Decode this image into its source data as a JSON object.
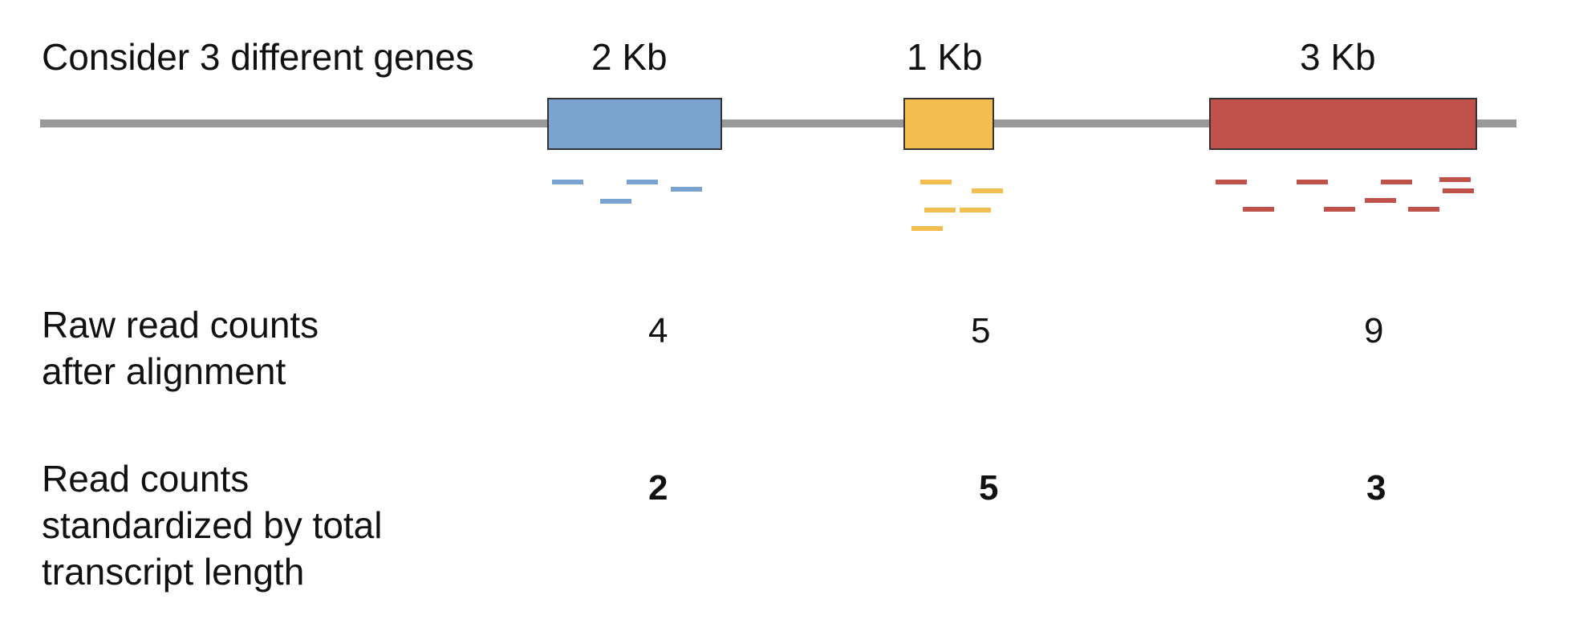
{
  "title": "Consider 3 different genes",
  "genes": [
    {
      "length_label": "2 Kb",
      "color": "#7aa3d0",
      "raw_count": "4",
      "standardized_count": "2"
    },
    {
      "length_label": "1 Kb",
      "color": "#f3bd4f",
      "raw_count": "5",
      "standardized_count": "5"
    },
    {
      "length_label": "3 Kb",
      "color": "#c0524b",
      "raw_count": "9",
      "standardized_count": "3"
    }
  ],
  "rows": {
    "raw_label": [
      "Raw read counts",
      "after alignment"
    ],
    "standardized_label": [
      "Read counts",
      "standardized by total",
      "transcript length"
    ]
  },
  "colors": {
    "chromosome": "#999999"
  }
}
